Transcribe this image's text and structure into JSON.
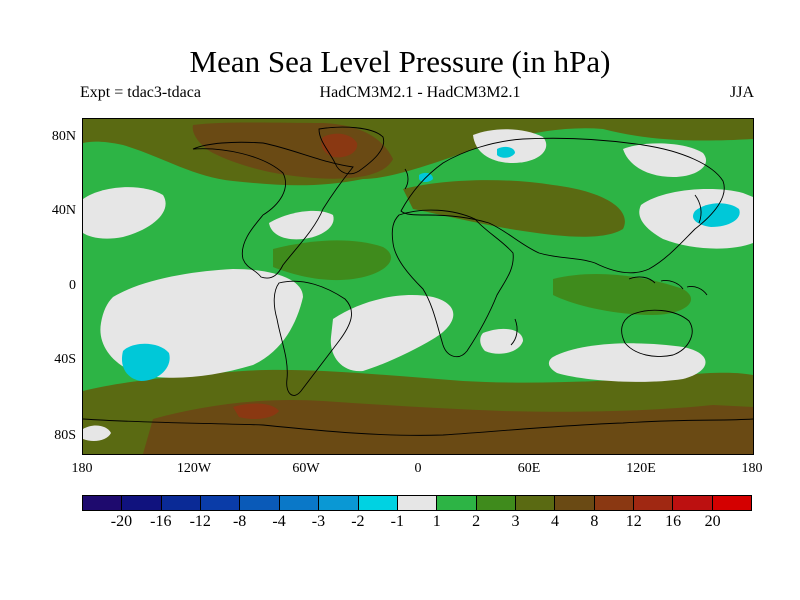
{
  "title": "Mean Sea Level Pressure (in hPa)",
  "subtitle_left": "Expt = tdac3-tdaca",
  "subtitle_center": "HadCM3M2.1 - HadCM3M2.1",
  "subtitle_right": "JJA",
  "map": {
    "projection": "cylindrical equidistant",
    "lat_ticks": [
      "80N",
      "40N",
      "0",
      "40S",
      "80S"
    ],
    "lon_ticks": [
      "180",
      "120W",
      "60W",
      "0",
      "60E",
      "120E",
      "180"
    ],
    "colors": {
      "neg3": "#00c8d8",
      "neutral": "#e6e6e6",
      "c1_2": "#2db445",
      "c2_3": "#3f8b1c",
      "c3_4": "#5a6a12",
      "c4_8": "#6a4a14",
      "c8_12": "#8a3812",
      "coast": "#000000"
    }
  },
  "colorbar": {
    "colors": [
      "#1e0a6e",
      "#10127e",
      "#0a2a96",
      "#0a3ca8",
      "#0a5ab8",
      "#0a78c8",
      "#0a98d4",
      "#00d2e2",
      "#e6e6e6",
      "#2db445",
      "#3f8b1c",
      "#5a6a12",
      "#6a4a14",
      "#8a3812",
      "#a02812",
      "#bc1010",
      "#d40000"
    ],
    "labels": [
      "-20",
      "-16",
      "-12",
      "-8",
      "-4",
      "-3",
      "-2",
      "-1",
      "1",
      "2",
      "3",
      "4",
      "8",
      "12",
      "16",
      "20"
    ]
  }
}
